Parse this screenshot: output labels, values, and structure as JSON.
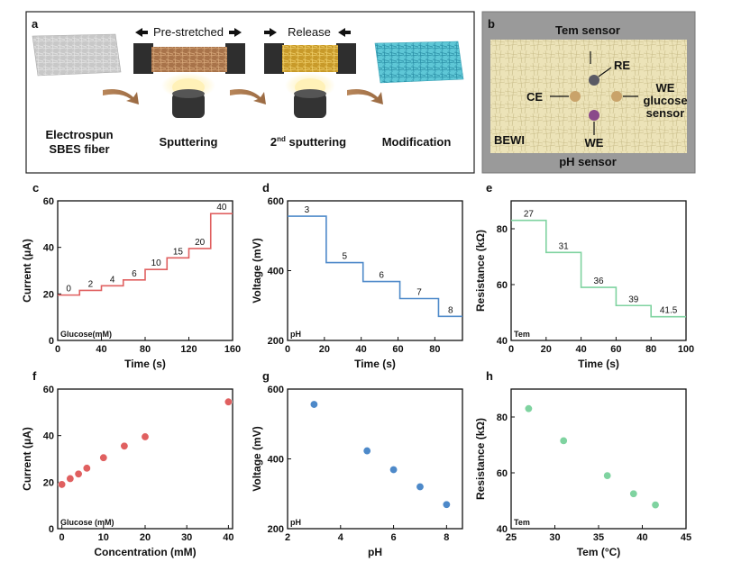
{
  "colors": {
    "red": "#e06060",
    "blue": "#4d89c9",
    "green": "#7fd3a0",
    "fiber_bg": "#ece3b8",
    "panel_b_border": "#aaaaaa"
  },
  "panel_a": {
    "letter": "a",
    "prestretched": "Pre-stretched",
    "release": "Release",
    "captions": {
      "c1_line1": "Electrospun",
      "c1_line2": "SBES fiber",
      "c2": "Sputtering",
      "c3_pre": "2",
      "c3_sup": "nd",
      "c3_post": " sputtering",
      "c4": "Modification"
    }
  },
  "panel_b": {
    "letter": "b",
    "tem_sensor": "Tem sensor",
    "re": "RE",
    "ce": "CE",
    "we_glucose_1": "WE",
    "we_glucose_2": "glucose",
    "we_glucose_3": "sensor",
    "we": "WE",
    "bewi": "BEWI",
    "ph_sensor": "pH sensor"
  },
  "chart_data": [
    {
      "id": "c",
      "letter": "c",
      "type": "line",
      "xlabel": "Time (s)",
      "ylabel_pre": "Current (",
      "ylabel_mu": "μ",
      "ylabel_post": "A)",
      "xlim": [
        0,
        160
      ],
      "ylim": [
        0,
        60
      ],
      "xticks": [
        0,
        40,
        80,
        120,
        160
      ],
      "yticks": [
        0,
        20,
        40,
        60
      ],
      "note": "Glucose(mM)",
      "steps": [
        {
          "x0": 0,
          "x1": 20,
          "y": 19.5,
          "label": "0"
        },
        {
          "x0": 20,
          "x1": 40,
          "y": 21.5,
          "label": "2"
        },
        {
          "x0": 40,
          "x1": 60,
          "y": 23.5,
          "label": "4"
        },
        {
          "x0": 60,
          "x1": 80,
          "y": 26,
          "label": "6"
        },
        {
          "x0": 80,
          "x1": 100,
          "y": 30.5,
          "label": "10"
        },
        {
          "x0": 100,
          "x1": 120,
          "y": 35.5,
          "label": "15"
        },
        {
          "x0": 120,
          "x1": 140,
          "y": 39.5,
          "label": "20"
        },
        {
          "x0": 140,
          "x1": 160,
          "y": 54.5,
          "label": "40"
        }
      ]
    },
    {
      "id": "d",
      "letter": "d",
      "type": "line",
      "xlabel": "Time (s)",
      "ylabel": "Voltage (mV)",
      "xlim": [
        0,
        95
      ],
      "ylim": [
        200,
        600
      ],
      "xticks": [
        0,
        20,
        40,
        60,
        80
      ],
      "yticks": [
        200,
        400,
        600
      ],
      "note": "pH",
      "steps": [
        {
          "x0": 0,
          "x1": 21,
          "y": 556,
          "label": "3"
        },
        {
          "x0": 21,
          "x1": 41,
          "y": 423,
          "label": "5"
        },
        {
          "x0": 41,
          "x1": 61,
          "y": 369,
          "label": "6"
        },
        {
          "x0": 61,
          "x1": 82,
          "y": 320,
          "label": "7"
        },
        {
          "x0": 82,
          "x1": 95,
          "y": 269,
          "label": "8"
        }
      ]
    },
    {
      "id": "e",
      "letter": "e",
      "type": "line",
      "xlabel": "Time (s)",
      "ylabel": "Resistance (kΩ)",
      "xlim": [
        0,
        100
      ],
      "ylim": [
        40,
        90
      ],
      "xticks": [
        0,
        20,
        40,
        60,
        80,
        100
      ],
      "yticks": [
        40,
        60,
        80
      ],
      "note": "Tem",
      "steps": [
        {
          "x0": 0,
          "x1": 20,
          "y": 83,
          "label": "27"
        },
        {
          "x0": 20,
          "x1": 40,
          "y": 71.5,
          "label": "31"
        },
        {
          "x0": 40,
          "x1": 60,
          "y": 59,
          "label": "36"
        },
        {
          "x0": 60,
          "x1": 80,
          "y": 52.5,
          "label": "39"
        },
        {
          "x0": 80,
          "x1": 100,
          "y": 48.5,
          "label": "41.5"
        }
      ]
    },
    {
      "id": "f",
      "letter": "f",
      "type": "scatter",
      "xlabel": "Concentration (mM)",
      "ylabel_pre": "Current (",
      "ylabel_mu": "μ",
      "ylabel_post": "A)",
      "xlim": [
        -1,
        41
      ],
      "ylim": [
        0,
        60
      ],
      "xticks": [
        0,
        10,
        20,
        30,
        40
      ],
      "yticks": [
        0,
        20,
        40,
        60
      ],
      "note": "Glucose (mM)",
      "x": [
        0,
        2,
        4,
        6,
        10,
        15,
        20,
        40
      ],
      "y": [
        19,
        21.5,
        23.5,
        26,
        30.5,
        35.5,
        39.5,
        54.5
      ]
    },
    {
      "id": "g",
      "letter": "g",
      "type": "scatter",
      "xlabel": "pH",
      "ylabel": "Voltage (mV)",
      "xlim": [
        2,
        8.6
      ],
      "ylim": [
        200,
        600
      ],
      "xticks": [
        2,
        4,
        6,
        8
      ],
      "yticks": [
        200,
        400,
        600
      ],
      "note": "pH",
      "x": [
        3,
        5,
        6,
        7,
        8
      ],
      "y": [
        556,
        423,
        369,
        320,
        269
      ]
    },
    {
      "id": "h",
      "letter": "h",
      "type": "scatter",
      "xlabel": "Tem (°C)",
      "ylabel": "Resistance (kΩ)",
      "xlim": [
        25,
        45
      ],
      "ylim": [
        40,
        90
      ],
      "xticks": [
        25,
        30,
        35,
        40,
        45
      ],
      "yticks": [
        40,
        60,
        80
      ],
      "note": "Tem",
      "x": [
        27,
        31,
        36,
        39,
        41.5
      ],
      "y": [
        83,
        71.5,
        59,
        52.5,
        48.5
      ]
    }
  ]
}
